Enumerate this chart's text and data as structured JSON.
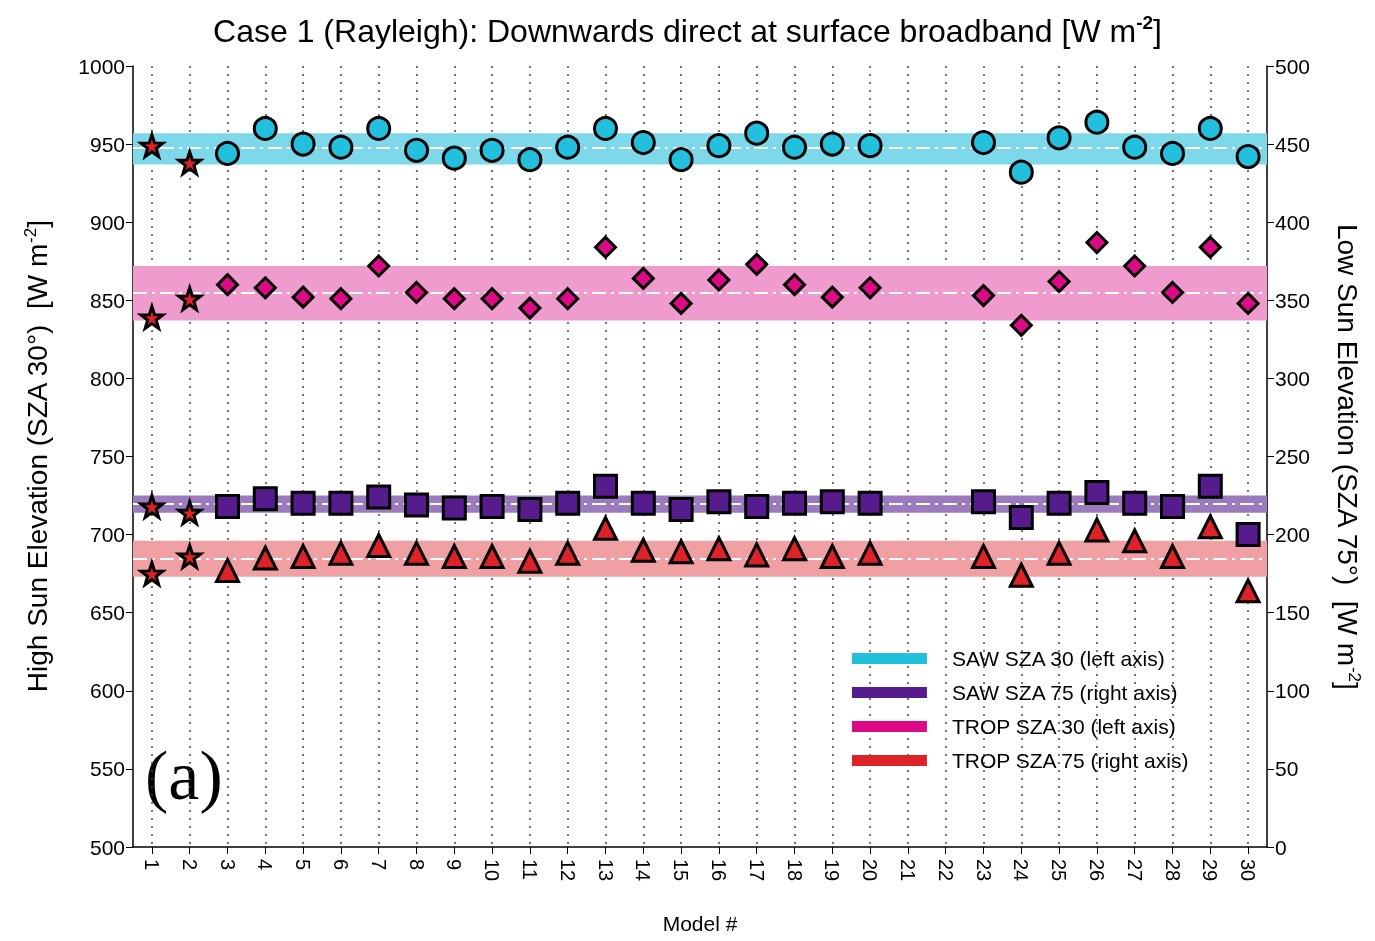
{
  "chart_data": {
    "type": "scatter",
    "title": "Case 1 (Rayleigh): Downwards direct at surface broadband [W m$^{-2}$]",
    "xlabel": "Model #",
    "ylabel": "High Sun Elevation (SZA 30°)  [W m$^{-2}$]",
    "y2label": "Low Sun Elevation (SZA 75°)  [W m$^{-2}$]",
    "categories": [
      "1",
      "2",
      "3",
      "4",
      "5",
      "6",
      "7",
      "8",
      "9",
      "10",
      "11",
      "12",
      "13",
      "14",
      "15",
      "16",
      "17",
      "18",
      "19",
      "20",
      "21",
      "22",
      "23",
      "24",
      "25",
      "26",
      "27",
      "28",
      "29",
      "30"
    ],
    "ylim": [
      500,
      1000
    ],
    "yticks": [
      500,
      550,
      600,
      650,
      700,
      750,
      800,
      850,
      900,
      950,
      1000
    ],
    "y2lim": [
      0,
      500
    ],
    "y2ticks": [
      0,
      50,
      100,
      150,
      200,
      250,
      300,
      350,
      400,
      450,
      500
    ],
    "grid": "x",
    "legend": "bottom right",
    "series": [
      {
        "name": "SAW SZA 30 (left axis)",
        "color": "#22c0dc",
        "marker": "circle",
        "values": [
          null,
          null,
          944,
          960,
          950,
          948,
          960,
          946,
          941,
          946,
          940,
          948,
          960,
          951,
          940,
          949,
          957,
          948,
          950,
          949,
          null,
          null,
          951,
          932,
          954,
          964,
          948,
          944,
          960,
          942
        ]
      },
      {
        "name": "SAW SZA 75 (right axis)",
        "color": "#561b8d",
        "marker": "square",
        "axis": "y2",
        "values": [
          null,
          null,
          218,
          223,
          220,
          220,
          224,
          219,
          217,
          218,
          216,
          220,
          231,
          220,
          216,
          221,
          218,
          220,
          221,
          220,
          null,
          null,
          221,
          211,
          220,
          227,
          220,
          218,
          231,
          200
        ]
      },
      {
        "name": "TROP SZA 30 (left axis)",
        "color": "#dc0a85",
        "marker": "diamond",
        "values": [
          null,
          null,
          860,
          858,
          852,
          851,
          872,
          855,
          851,
          851,
          845,
          851,
          884,
          864,
          848,
          863,
          873,
          860,
          852,
          858,
          null,
          null,
          853,
          834,
          862,
          887,
          872,
          855,
          884,
          848
        ]
      },
      {
        "name": "TROP SZA 75 (right axis)",
        "color": "#dd2228",
        "marker": "triangle",
        "axis": "y2",
        "values": [
          null,
          null,
          177,
          185,
          186,
          188,
          193,
          188,
          186,
          186,
          183,
          188,
          204,
          190,
          189,
          191,
          187,
          191,
          186,
          188,
          null,
          null,
          186,
          174,
          188,
          203,
          196,
          186,
          205,
          164
        ]
      },
      {
        "color": "#dd2228",
        "marker": "star",
        "x": [
          "1",
          "2",
          "1",
          "2"
        ],
        "values": [
          949,
          938,
          839,
          851
        ]
      },
      {
        "color": "#dd2228",
        "marker": "star",
        "axis": "y2",
        "x": [
          "1",
          "2",
          "1",
          "2"
        ],
        "values": [
          218,
          214,
          175,
          186
        ]
      }
    ],
    "bands": [
      {
        "axis": "y",
        "from": 937,
        "to": 957,
        "color": "#7dd8ea"
      },
      {
        "axis": "y",
        "from": 837,
        "to": 872,
        "color": "#f09bcd"
      },
      {
        "axis": "y2",
        "from": 214,
        "to": 225,
        "color": "#9b7bbd"
      },
      {
        "axis": "y2",
        "from": 173,
        "to": 196,
        "color": "#f0a0a3"
      }
    ],
    "ref_lines": [
      {
        "axis": "y",
        "value": 947.5,
        "color": "#ffffff",
        "line_style": "dashed"
      },
      {
        "axis": "y",
        "value": 855,
        "color": "#ffffff",
        "line_style": "dashed"
      },
      {
        "axis": "y2",
        "value": 219.5,
        "color": "#ffffff",
        "line_style": "dashed"
      },
      {
        "axis": "y2",
        "value": 184.5,
        "color": "#ffffff",
        "line_style": "dashed"
      }
    ],
    "annotations": [
      "(a)"
    ]
  }
}
